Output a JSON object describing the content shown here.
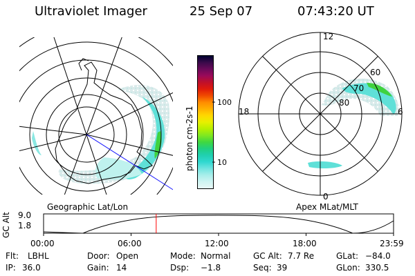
{
  "header": {
    "title": "Ultraviolet Imager",
    "date": "25 Sep 07",
    "time": "07:43:20 UT"
  },
  "colors": {
    "cyan": "#5fe0d8",
    "light_cyan": "#bff2ee",
    "pale": "#e6eeee",
    "green": "#3fd23f",
    "dark_green": "#27b04a",
    "coast": "#000000",
    "sun_line": "#1a1aff",
    "time_marker": "#ff0000"
  },
  "left_panel": {
    "caption": "Geographic Lat/Lon"
  },
  "right_panel": {
    "caption": "Apex MLat/MLT",
    "mlt_labels": [
      "12",
      "18",
      "6",
      "0"
    ],
    "mlat_labels": [
      "60",
      "70",
      "80"
    ]
  },
  "colorbar": {
    "unit_label": "photon cm-2s-1",
    "tick_labels": [
      "100",
      "10"
    ],
    "colors": [
      "#000030",
      "#3a0a4a",
      "#6a0a5a",
      "#9a0a5a",
      "#c0102a",
      "#e01a0a",
      "#f04a00",
      "#ff8c00",
      "#ffb000",
      "#ffd800",
      "#e8f000",
      "#b8f000",
      "#80e820",
      "#40d840",
      "#20d080",
      "#20d0b0",
      "#30d8d0",
      "#70e4e0",
      "#a8eeea",
      "#cff4f2",
      "#e8f8f6"
    ]
  },
  "altitude_plot": {
    "ylabel": "GC Alt",
    "y_ticks": [
      "9.0",
      "1.8"
    ],
    "x_ticks": [
      "00:00",
      "06:00",
      "12:00",
      "18:00",
      "23:59"
    ],
    "current_time_fraction": 0.3218
  },
  "info": {
    "flt_label": "Flt:",
    "flt_value": "LBHL",
    "door_label": "Door:",
    "door_value": "Open",
    "mode_label": "Mode:",
    "mode_value": "Normal",
    "gcalt_label": "GC Alt:",
    "gcalt_value": "7.7 Re",
    "glat_label": "GLat:",
    "glat_value": "−84.0",
    "ip_label": "IP:",
    "ip_value": "36.0",
    "gain_label": "Gain:",
    "gain_value": "14",
    "dsp_label": "Dsp:",
    "dsp_value": "−1.8",
    "seq_label": "Seq:",
    "seq_value": "39",
    "glon_label": "GLon:",
    "glon_value": "330.5"
  }
}
